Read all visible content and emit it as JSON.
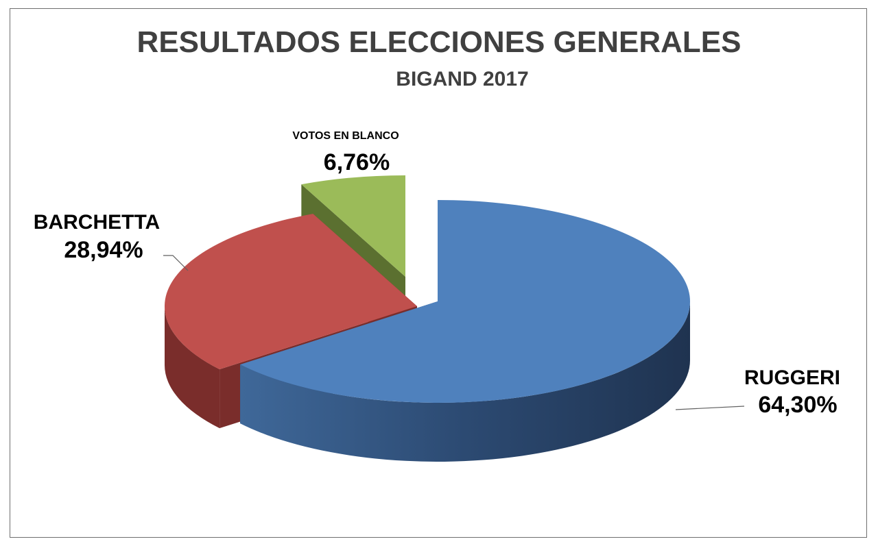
{
  "chart_data": {
    "type": "pie",
    "title": "RESULTADOS ELECCIONES GENERALES",
    "subtitle": "BIGAND 2017",
    "slices": [
      {
        "label": "RUGGERI",
        "value": 64.3,
        "value_label": "64,30%",
        "color": "#4f81bd",
        "dark": "#2c4a73",
        "exploded": false
      },
      {
        "label": "BARCHETTA",
        "value": 28.94,
        "value_label": "28,94%",
        "color": "#c0504d",
        "dark": "#7a2d2b",
        "exploded": true
      },
      {
        "label": "VOTOS EN BLANCO",
        "value": 6.76,
        "value_label": "6,76%",
        "color": "#9bbb59",
        "dark": "#5b7030",
        "exploded": true
      }
    ],
    "style": "3d-exploded",
    "legend": "none"
  }
}
